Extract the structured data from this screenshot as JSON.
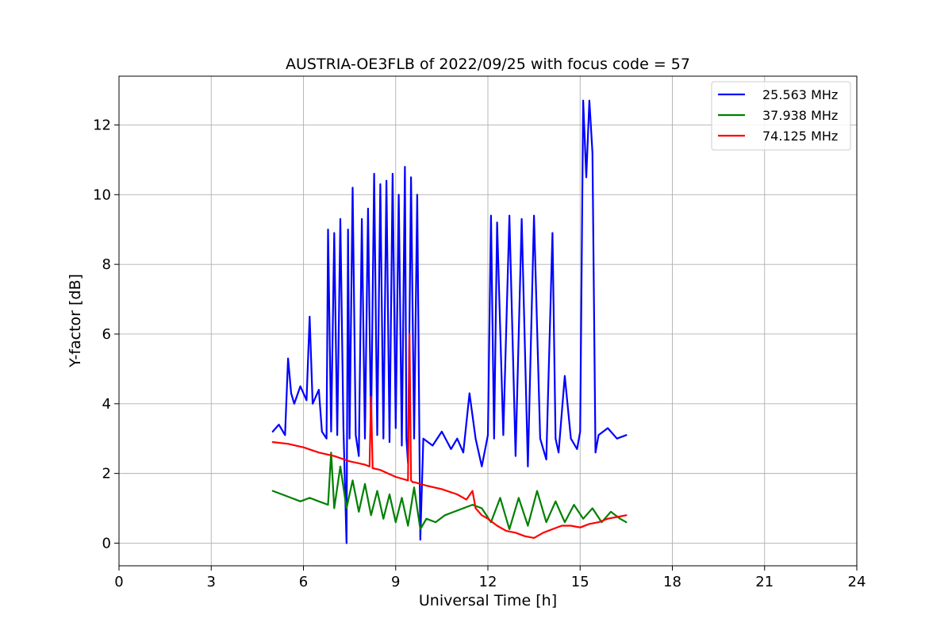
{
  "chart_data": {
    "type": "line",
    "title": "AUSTRIA-OE3FLB of 2022/09/25 with focus code = 57",
    "xlabel": "Universal Time [h]",
    "ylabel": "Y-factor [dB]",
    "xlim": [
      0,
      24
    ],
    "ylim": [
      -0.65,
      13.4
    ],
    "xticks": [
      0,
      3,
      6,
      9,
      12,
      15,
      18,
      21,
      24
    ],
    "yticks": [
      0,
      2,
      4,
      6,
      8,
      10,
      12
    ],
    "grid": true,
    "legend_position": "top-right",
    "series": [
      {
        "name": "25.563 MHz",
        "color": "#0000ff",
        "x": [
          5.0,
          5.2,
          5.4,
          5.5,
          5.6,
          5.7,
          5.9,
          6.1,
          6.2,
          6.3,
          6.5,
          6.6,
          6.75,
          6.8,
          6.9,
          7.0,
          7.1,
          7.2,
          7.3,
          7.4,
          7.45,
          7.5,
          7.6,
          7.7,
          7.8,
          7.9,
          8.0,
          8.1,
          8.2,
          8.3,
          8.4,
          8.5,
          8.6,
          8.7,
          8.8,
          8.9,
          9.0,
          9.1,
          9.2,
          9.3,
          9.35,
          9.4,
          9.5,
          9.6,
          9.7,
          9.8,
          9.9,
          10.2,
          10.5,
          10.8,
          11.0,
          11.2,
          11.4,
          11.6,
          11.8,
          12.0,
          12.1,
          12.2,
          12.3,
          12.5,
          12.7,
          12.9,
          13.1,
          13.3,
          13.5,
          13.7,
          13.9,
          14.1,
          14.2,
          14.3,
          14.5,
          14.7,
          14.9,
          15.0,
          15.1,
          15.2,
          15.3,
          15.4,
          15.5,
          15.6,
          15.9,
          16.2,
          16.5
        ],
        "y": [
          3.2,
          3.4,
          3.1,
          5.3,
          4.3,
          4.0,
          4.5,
          4.1,
          6.5,
          4.0,
          4.4,
          3.2,
          3.0,
          9.0,
          3.2,
          8.9,
          3.1,
          9.3,
          3.3,
          0.0,
          9.0,
          3.0,
          10.2,
          3.1,
          2.5,
          9.3,
          3.0,
          9.6,
          3.2,
          10.6,
          3.1,
          10.3,
          3.0,
          10.4,
          2.9,
          10.6,
          3.3,
          10.0,
          2.8,
          10.8,
          3.0,
          2.3,
          10.5,
          3.0,
          10.0,
          0.1,
          3.0,
          2.8,
          3.2,
          2.7,
          3.0,
          2.6,
          4.3,
          3.0,
          2.2,
          3.1,
          9.4,
          3.0,
          9.2,
          3.1,
          9.4,
          2.5,
          9.3,
          2.2,
          9.4,
          3.0,
          2.4,
          8.9,
          3.0,
          2.6,
          4.8,
          3.0,
          2.7,
          3.2,
          12.7,
          10.5,
          12.7,
          11.2,
          2.6,
          3.1,
          3.3,
          3.0,
          3.1
        ]
      },
      {
        "name": "37.938 MHz",
        "color": "#008000",
        "x": [
          5.0,
          5.3,
          5.6,
          5.9,
          6.2,
          6.5,
          6.8,
          6.9,
          7.0,
          7.2,
          7.4,
          7.6,
          7.8,
          8.0,
          8.2,
          8.4,
          8.6,
          8.8,
          9.0,
          9.2,
          9.4,
          9.6,
          9.8,
          10.0,
          10.3,
          10.6,
          10.9,
          11.2,
          11.5,
          11.8,
          12.1,
          12.4,
          12.7,
          13.0,
          13.3,
          13.6,
          13.9,
          14.2,
          14.5,
          14.8,
          15.1,
          15.4,
          15.7,
          16.0,
          16.3,
          16.5
        ],
        "y": [
          1.5,
          1.4,
          1.3,
          1.2,
          1.3,
          1.2,
          1.1,
          2.6,
          1.0,
          2.2,
          1.0,
          1.8,
          0.9,
          1.7,
          0.8,
          1.5,
          0.7,
          1.4,
          0.6,
          1.3,
          0.5,
          1.6,
          0.4,
          0.7,
          0.6,
          0.8,
          0.9,
          1.0,
          1.1,
          1.0,
          0.6,
          1.3,
          0.4,
          1.3,
          0.5,
          1.5,
          0.6,
          1.2,
          0.6,
          1.1,
          0.7,
          1.0,
          0.6,
          0.9,
          0.7,
          0.6
        ]
      },
      {
        "name": "74.125 MHz",
        "color": "#ff0000",
        "x": [
          5.0,
          5.5,
          6.0,
          6.5,
          7.0,
          7.5,
          8.0,
          8.15,
          8.2,
          8.25,
          8.5,
          9.0,
          9.4,
          9.45,
          9.5,
          9.55,
          9.6,
          10.0,
          10.5,
          11.0,
          11.3,
          11.5,
          11.6,
          11.8,
          12.0,
          12.3,
          12.6,
          12.9,
          13.2,
          13.5,
          13.8,
          14.1,
          14.4,
          14.7,
          15.0,
          15.3,
          15.6,
          15.9,
          16.2,
          16.5
        ],
        "y": [
          2.9,
          2.85,
          2.75,
          2.6,
          2.5,
          2.35,
          2.25,
          2.2,
          4.2,
          2.15,
          2.1,
          1.9,
          1.8,
          6.0,
          1.8,
          1.75,
          1.75,
          1.65,
          1.55,
          1.4,
          1.25,
          1.5,
          1.0,
          0.8,
          0.7,
          0.5,
          0.35,
          0.3,
          0.2,
          0.15,
          0.3,
          0.4,
          0.5,
          0.5,
          0.45,
          0.55,
          0.6,
          0.7,
          0.75,
          0.8
        ]
      }
    ]
  }
}
